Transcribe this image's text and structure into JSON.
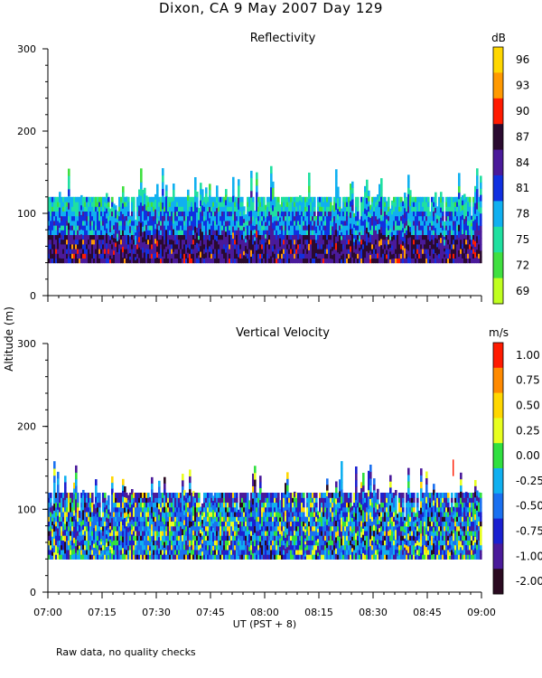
{
  "page_title": "Dixon, CA  9 May 2007  Day 129",
  "footnote": "Raw data, no quality checks",
  "colors": {
    "axis": "#000000",
    "background": "#ffffff"
  },
  "chart_data": [
    {
      "type": "heatmap",
      "title": "Reflectivity",
      "ylabel": "Altitude (m)",
      "xlabel": "UT  (PST + 8)",
      "ylim": [
        0,
        300
      ],
      "yticks": [
        0,
        100,
        200,
        300
      ],
      "xticks": [
        "07:00",
        "07:15",
        "07:30",
        "07:45",
        "08:00",
        "08:15",
        "08:30",
        "08:45",
        "09:00"
      ],
      "colorbar": {
        "unit": "dB",
        "labels": [
          "96",
          "93",
          "90",
          "87",
          "84",
          "81",
          "78",
          "75",
          "72",
          "69"
        ],
        "colors": [
          "#ffd700",
          "#ff9900",
          "#ff1a00",
          "#2a0a30",
          "#4a1a9a",
          "#1030e0",
          "#10b0f0",
          "#20e0a0",
          "#40e040",
          "#c0ff20"
        ]
      },
      "data_extent": {
        "bottom_m": 40,
        "top_m": 160,
        "typical_top_m": 120
      }
    },
    {
      "type": "heatmap",
      "title": "Vertical Velocity",
      "ylabel": "Altitude (m)",
      "xlabel": "UT  (PST + 8)",
      "ylim": [
        0,
        300
      ],
      "yticks": [
        0,
        100,
        200,
        300
      ],
      "xticks": [
        "07:00",
        "07:15",
        "07:30",
        "07:45",
        "08:00",
        "08:15",
        "08:30",
        "08:45",
        "09:00"
      ],
      "colorbar": {
        "unit": "m/s",
        "labels": [
          "1.00",
          "0.75",
          "0.50",
          "0.25",
          "0.00",
          "-0.25",
          "-0.50",
          "-0.75",
          "-1.00",
          "-2.00"
        ],
        "colors": [
          "#ff1a00",
          "#ff8a00",
          "#ffd700",
          "#e8ff20",
          "#30e040",
          "#10b0f0",
          "#1a70f0",
          "#1a20d0",
          "#4a1a9a",
          "#2a0a20"
        ]
      },
      "data_extent": {
        "bottom_m": 40,
        "top_m": 160,
        "typical_top_m": 120
      }
    }
  ]
}
